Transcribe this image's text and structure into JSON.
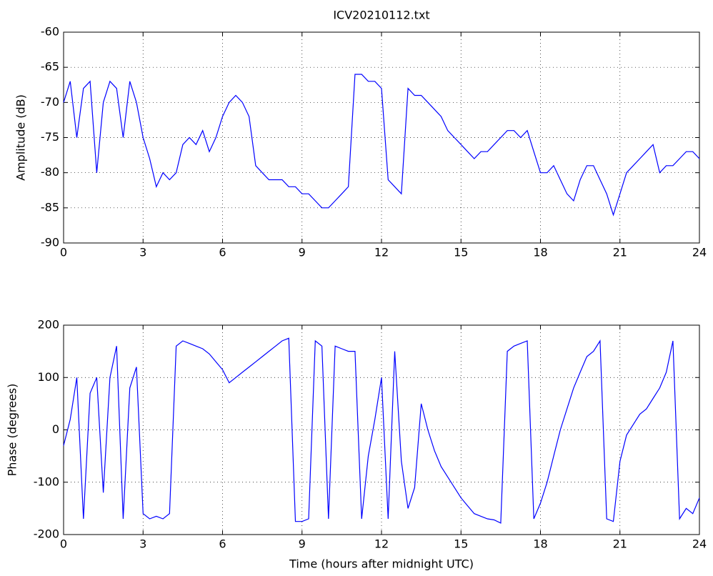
{
  "chart_data": [
    {
      "type": "line",
      "title": "ICV20210112.txt",
      "ylabel": "Amplitude (dB)",
      "color": "#0000ff",
      "grid": true,
      "xlim": [
        0,
        24
      ],
      "xticks": [
        0,
        3,
        6,
        9,
        12,
        15,
        18,
        21,
        24
      ],
      "ylim": [
        -90,
        -60
      ],
      "yticks": [
        -90,
        -85,
        -80,
        -75,
        -70,
        -65,
        -60
      ],
      "x": [
        0,
        0.25,
        0.5,
        0.75,
        1,
        1.25,
        1.5,
        1.75,
        2,
        2.25,
        2.5,
        2.75,
        3,
        3.25,
        3.5,
        3.75,
        4,
        4.25,
        4.5,
        4.75,
        5,
        5.25,
        5.5,
        5.75,
        6,
        6.25,
        6.5,
        6.75,
        7,
        7.25,
        7.5,
        7.75,
        8,
        8.25,
        8.5,
        8.75,
        9,
        9.25,
        9.5,
        9.75,
        10,
        10.25,
        10.5,
        10.75,
        11,
        11.25,
        11.5,
        11.75,
        12,
        12.25,
        12.5,
        12.75,
        13,
        13.25,
        13.5,
        13.75,
        14,
        14.25,
        14.5,
        14.75,
        15,
        15.25,
        15.5,
        15.75,
        16,
        16.25,
        16.5,
        16.75,
        17,
        17.25,
        17.5,
        17.75,
        18,
        18.25,
        18.5,
        18.75,
        19,
        19.25,
        19.5,
        19.75,
        20,
        20.25,
        20.5,
        20.75,
        21,
        21.25,
        21.5,
        21.75,
        22,
        22.25,
        22.5,
        22.75,
        23,
        23.25,
        23.5,
        23.75,
        24
      ],
      "values": [
        -70,
        -67,
        -75,
        -68,
        -67,
        -80,
        -70,
        -67,
        -68,
        -75,
        -67,
        -70,
        -75,
        -78,
        -82,
        -80,
        -81,
        -80,
        -76,
        -75,
        -76,
        -74,
        -77,
        -75,
        -72,
        -70,
        -69,
        -70,
        -72,
        -79,
        -80,
        -81,
        -81,
        -81,
        -82,
        -82,
        -83,
        -83,
        -84,
        -85,
        -85,
        -84,
        -83,
        -82,
        -66,
        -66,
        -67,
        -67,
        -68,
        -81,
        -82,
        -83,
        -68,
        -69,
        -69,
        -70,
        -71,
        -72,
        -74,
        -75,
        -76,
        -77,
        -78,
        -77,
        -77,
        -76,
        -75,
        -74,
        -74,
        -75,
        -74,
        -77,
        -80,
        -80,
        -79,
        -81,
        -83,
        -84,
        -81,
        -79,
        -79,
        -81,
        -83,
        -86,
        -83,
        -80,
        -79,
        -78,
        -77,
        -76,
        -80,
        -79,
        -79,
        -78,
        -77,
        -77,
        -78
      ]
    },
    {
      "type": "line",
      "ylabel": "Phase (degrees)",
      "xlabel": "Time (hours after midnight UTC)",
      "color": "#0000ff",
      "grid": true,
      "xlim": [
        0,
        24
      ],
      "xticks": [
        0,
        3,
        6,
        9,
        12,
        15,
        18,
        21,
        24
      ],
      "ylim": [
        -200,
        200
      ],
      "yticks": [
        -200,
        -100,
        0,
        100,
        200
      ],
      "x": [
        0,
        0.25,
        0.5,
        0.75,
        1,
        1.25,
        1.5,
        1.75,
        2,
        2.25,
        2.5,
        2.75,
        3,
        3.25,
        3.5,
        3.75,
        4,
        4.25,
        4.5,
        4.75,
        5,
        5.25,
        5.5,
        5.75,
        6,
        6.25,
        6.5,
        6.75,
        7,
        7.25,
        7.5,
        7.75,
        8,
        8.25,
        8.5,
        8.75,
        9,
        9.25,
        9.5,
        9.75,
        10,
        10.25,
        10.5,
        10.75,
        11,
        11.25,
        11.5,
        11.75,
        12,
        12.25,
        12.5,
        12.75,
        13,
        13.25,
        13.5,
        13.75,
        14,
        14.25,
        14.5,
        14.75,
        15,
        15.25,
        15.5,
        15.75,
        16,
        16.25,
        16.5,
        16.75,
        17,
        17.25,
        17.5,
        17.75,
        18,
        18.25,
        18.5,
        18.75,
        19,
        19.25,
        19.5,
        19.75,
        20,
        20.25,
        20.5,
        20.75,
        21,
        21.25,
        21.5,
        21.75,
        22,
        22.25,
        22.5,
        22.75,
        23,
        23.25,
        23.5,
        23.75,
        24
      ],
      "values": [
        -30,
        20,
        100,
        -170,
        70,
        100,
        -120,
        100,
        160,
        -170,
        80,
        120,
        -160,
        -170,
        -165,
        -170,
        -160,
        160,
        170,
        165,
        160,
        155,
        145,
        130,
        115,
        90,
        100,
        110,
        120,
        130,
        140,
        150,
        160,
        170,
        175,
        -175,
        -175,
        -170,
        170,
        160,
        -170,
        160,
        155,
        150,
        150,
        -170,
        -50,
        20,
        100,
        -170,
        150,
        -60,
        -150,
        -110,
        50,
        0,
        -40,
        -70,
        -90,
        -110,
        -130,
        -145,
        -160,
        -165,
        -170,
        -172,
        -178,
        150,
        160,
        165,
        170,
        -170,
        -140,
        -100,
        -50,
        0,
        40,
        80,
        110,
        140,
        150,
        170,
        -170,
        -175,
        -60,
        -10,
        10,
        30,
        40,
        60,
        80,
        110,
        170,
        -170,
        -150,
        -160,
        -130
      ]
    }
  ]
}
